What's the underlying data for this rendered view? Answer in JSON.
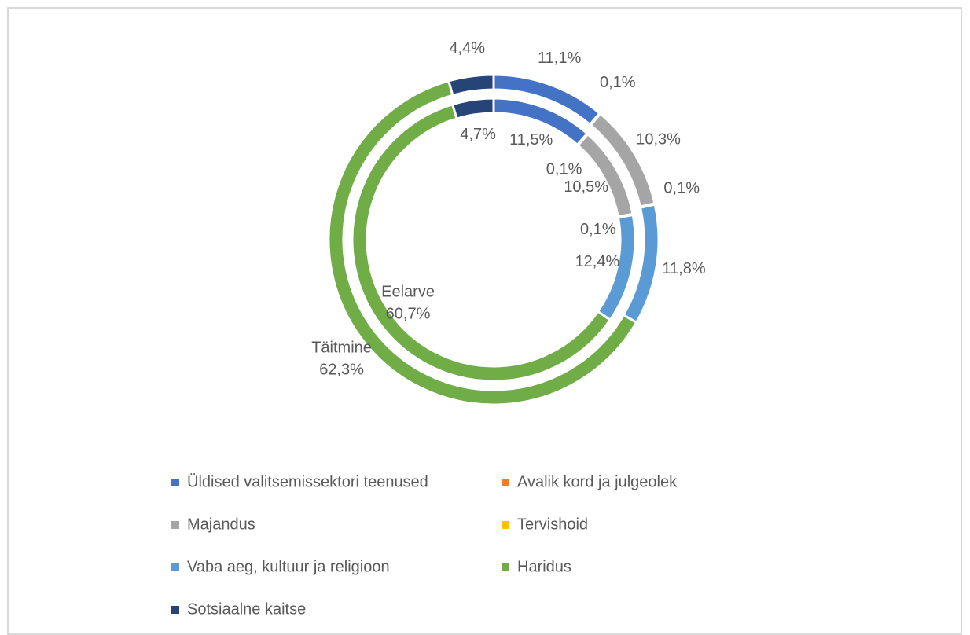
{
  "chart_data": {
    "type": "doughnut",
    "categories": [
      "Üldised valitsemissektori teenused",
      "Avalik kord ja julgeolek",
      "Majandus",
      "Tervishoid",
      "Vaba aeg, kultuur ja religioon",
      "Haridus",
      "Sotsiaalne kaitse"
    ],
    "colors": [
      "#4472c4",
      "#ed7d31",
      "#a5a5a5",
      "#ffc000",
      "#5b9bd5",
      "#70ad47",
      "#264478"
    ],
    "series": [
      {
        "name": "Eelarve",
        "values": [
          11.5,
          0.1,
          10.5,
          0.1,
          12.4,
          60.7,
          4.7
        ],
        "value_labels": [
          "11,5%",
          "0,1%",
          "10,5%",
          "0,1%",
          "12,4%",
          "60,7%",
          "4,7%"
        ]
      },
      {
        "name": "Täitmine",
        "values": [
          11.1,
          0.1,
          10.3,
          0.1,
          11.8,
          62.3,
          4.4
        ],
        "value_labels": [
          "11,1%",
          "0,1%",
          "10,3%",
          "0,1%",
          "11,8%",
          "62,3%",
          "4,4%"
        ]
      }
    ],
    "legend": "bottom"
  }
}
